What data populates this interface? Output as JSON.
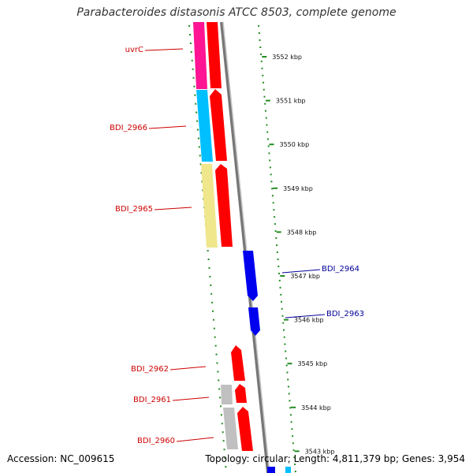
{
  "title": "Parabacteroides distasonis ATCC 8503, complete genome",
  "accession": "Accession: NC_009615",
  "summary": "Topology: circular; Length: 4,811,379 bp; Genes: 3,954",
  "ticks": [
    "3552 kbp",
    "3551 kbp",
    "3550 kbp",
    "3549 kbp",
    "3548 kbp",
    "3547 kbp",
    "3546 kbp",
    "3545 kbp",
    "3544 kbp",
    "3543 kbp"
  ],
  "genes_left": [
    "uvrC",
    "BDI_2966",
    "BDI_2965",
    "BDI_2962",
    "BDI_2961",
    "BDI_2960"
  ],
  "genes_right": [
    "BDI_2964",
    "BDI_2963"
  ],
  "colors": {
    "forward_gene": "#ff0000",
    "reverse_gene": "#0000ee",
    "left_label": "#cc0000",
    "right_label": "#000099",
    "cog_magenta": "#ff1493",
    "cog_cyan": "#00bfff",
    "cog_khaki": "#f0e68c",
    "cog_gray": "#c0c0c0",
    "backbone": "#888888",
    "gc_dots": "#228b22"
  }
}
